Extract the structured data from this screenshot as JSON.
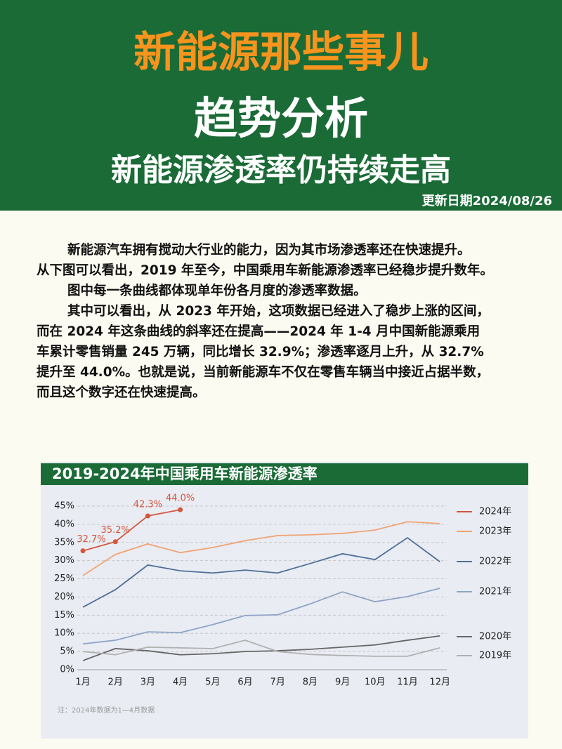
{
  "header": {
    "title": "新能源那些事儿",
    "subtitle": "趋势分析",
    "headline": "新能源渗透率仍持续走高",
    "date": "更新日期2024/08/26"
  },
  "body": {
    "lines": [
      "新能源汽车拥有搅动大行业的能力，因为其市场渗透率还在快速提升。",
      "从下图可以看出，2019 年至今，中国乘用车新能源渗透率已经稳步提升数年。",
      "图中每一条曲线都体现单年份各月度的渗透率数据。",
      "其中可以看出，从 2023 年开始，这项数据已经进入了稳步上涨的区间，",
      "而在 2024 年这条曲线的斜率还在提高——2024 年 1-4 月中国新能源乘用",
      "车累计零售销量 245 万辆，同比增长 32.9%；渗透率逐月上升，从 32.7%",
      "提升至 44.0%。也就是说，当前新能源车不仅在零售车辆当中接近占据半数，",
      "而且这个数字还在快速提高。"
    ]
  },
  "chart_data": {
    "type": "line",
    "title": "2019-2024年中国乘用车新能源渗透率",
    "categories": [
      "1月",
      "2月",
      "3月",
      "4月",
      "5月",
      "6月",
      "7月",
      "8月",
      "9月",
      "10月",
      "11月",
      "12月"
    ],
    "series": [
      {
        "name": "2024年",
        "color": "#d4553c",
        "values": [
          32.7,
          35.2,
          42.3,
          44.0,
          null,
          null,
          null,
          null,
          null,
          null,
          null,
          null
        ],
        "value_labels": [
          "32.7%",
          "35.2%",
          "42.3%",
          "44.0%",
          null,
          null,
          null,
          null,
          null,
          null,
          null,
          null
        ]
      },
      {
        "name": "2023年",
        "color": "#f0a475",
        "values": [
          25.9,
          31.7,
          34.6,
          32.2,
          33.6,
          35.5,
          36.9,
          37.1,
          37.5,
          38.4,
          40.7,
          40.2
        ]
      },
      {
        "name": "2022年",
        "color": "#4e6f97",
        "values": [
          17.2,
          22.0,
          28.8,
          27.2,
          26.6,
          27.4,
          26.6,
          29.2,
          31.9,
          30.3,
          36.3,
          29.7
        ]
      },
      {
        "name": "2021年",
        "color": "#90a3c6",
        "values": [
          7.1,
          8.1,
          10.4,
          10.2,
          12.4,
          14.9,
          15.1,
          18.1,
          21.4,
          18.7,
          20.1,
          22.4
        ]
      },
      {
        "name": "2020年",
        "color": "#666666",
        "values": [
          2.5,
          5.8,
          5.2,
          4.1,
          4.4,
          5.0,
          5.2,
          5.6,
          6.2,
          6.8,
          8.1,
          9.3
        ]
      },
      {
        "name": "2019年",
        "color": "#b0b0b0",
        "values": [
          5.0,
          4.1,
          6.2,
          6.0,
          5.8,
          8.1,
          5.0,
          4.2,
          3.9,
          3.7,
          3.7,
          6.0
        ]
      }
    ],
    "ylim": [
      0,
      45
    ],
    "yticks": [
      {
        "value": 0,
        "label": "0%"
      },
      {
        "value": 5,
        "label": "5%"
      },
      {
        "value": 10,
        "label": "10%"
      },
      {
        "value": 15,
        "label": "15%"
      },
      {
        "value": 20,
        "label": "20%"
      },
      {
        "value": 25,
        "label": "25%"
      },
      {
        "value": 30,
        "label": "30%"
      },
      {
        "value": 35,
        "label": "35%"
      },
      {
        "value": 40,
        "label": "40%"
      },
      {
        "value": 45,
        "label": "45%"
      }
    ],
    "grid": true,
    "legend": "right",
    "note": "注：2024年数据为1—4月数据"
  }
}
